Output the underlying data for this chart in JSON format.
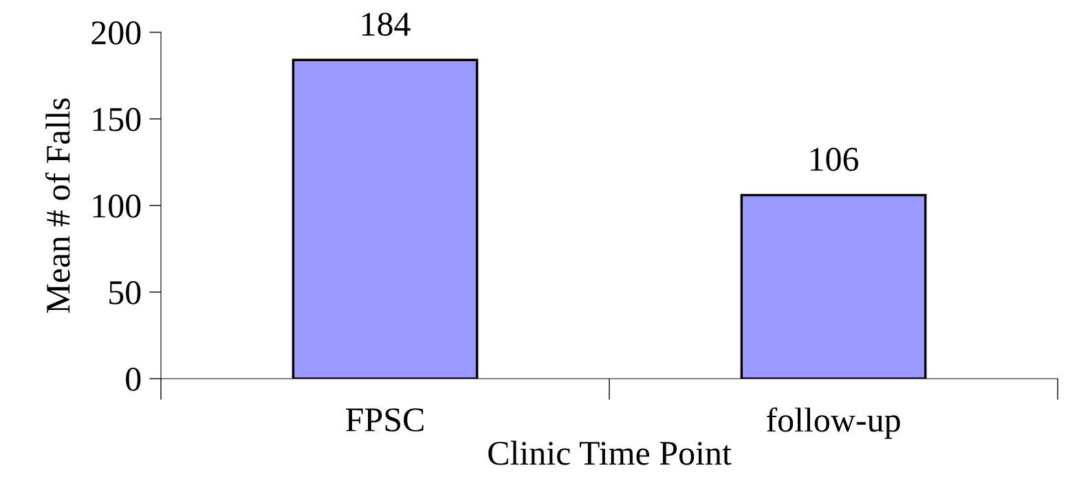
{
  "chart_data": {
    "type": "bar",
    "xlabel": "Clinic Time Point",
    "ylabel": "Mean # of Falls",
    "categories": [
      "FPSC",
      "follow-up"
    ],
    "values": [
      184,
      106
    ],
    "color": "#9999ff",
    "ylim": [
      0,
      200
    ],
    "yticks": [
      0,
      50,
      100,
      150,
      200
    ],
    "data_labels": true
  }
}
